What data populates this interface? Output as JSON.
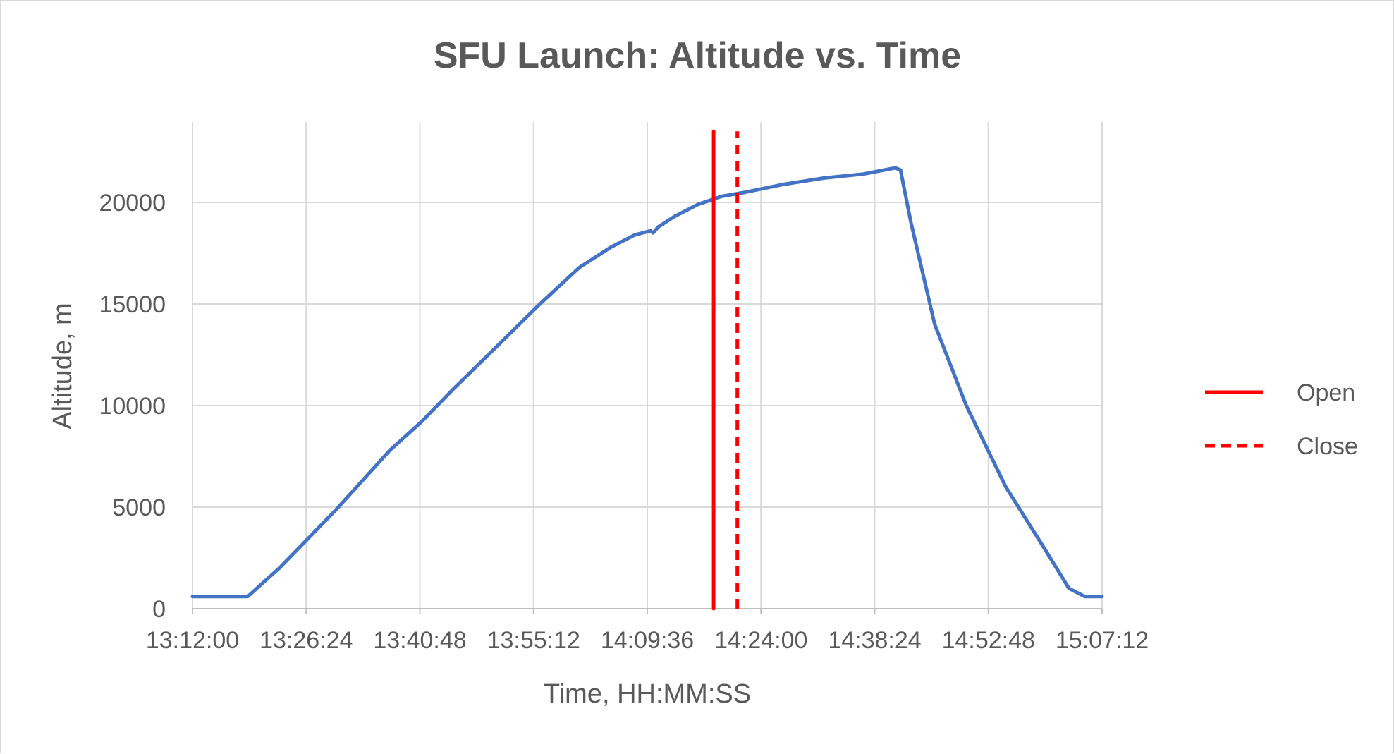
{
  "chart_data": {
    "type": "line",
    "title": "SFU Launch: Altitude vs. Time",
    "xlabel": "Time, HH:MM:SS",
    "ylabel": "Altitude, m",
    "x_ticks": [
      "13:12:00",
      "13:26:24",
      "13:40:48",
      "13:55:12",
      "14:09:36",
      "14:24:00",
      "14:38:24",
      "14:52:48",
      "15:07:12"
    ],
    "y_ticks": [
      "0",
      "5000",
      "10000",
      "15000",
      "20000"
    ],
    "xlim": [
      "13:12:00",
      "15:07:12"
    ],
    "ylim": [
      0,
      22500
    ],
    "grid": true,
    "legend_position": "right",
    "series": [
      {
        "color": "#4472c4",
        "style": "solid",
        "x": [
          "13:12:00",
          "13:17:00",
          "13:19:00",
          "13:23:00",
          "13:30:00",
          "13:37:00",
          "13:41:00",
          "13:45:00",
          "13:50:00",
          "13:56:00",
          "14:01:00",
          "14:05:00",
          "14:08:00",
          "14:10:00",
          "14:10:20",
          "14:11:00",
          "14:13:00",
          "14:16:00",
          "14:19:00",
          "14:22:00",
          "14:27:00",
          "14:32:00",
          "14:37:00",
          "14:41:00",
          "14:41:40",
          "14:43:00",
          "14:46:00",
          "14:50:00",
          "14:55:00",
          "15:00:00",
          "15:03:00",
          "15:05:00",
          "15:07:12"
        ],
        "y": [
          600,
          600,
          600,
          2000,
          4800,
          7800,
          9200,
          10800,
          12700,
          15000,
          16800,
          17800,
          18400,
          18600,
          18500,
          18800,
          19300,
          19900,
          20300,
          20500,
          20900,
          21200,
          21400,
          21700,
          21600,
          19000,
          14000,
          10000,
          6000,
          2900,
          1000,
          600,
          600
        ]
      },
      {
        "name": "Open",
        "color": "#ff0000",
        "style": "solid",
        "x": [
          "14:18:00",
          "14:18:00"
        ],
        "y": [
          0,
          23500
        ]
      },
      {
        "name": "Close",
        "color": "#ff0000",
        "style": "dashed",
        "x": [
          "14:21:00",
          "14:21:00"
        ],
        "y": [
          0,
          23500
        ]
      }
    ]
  }
}
